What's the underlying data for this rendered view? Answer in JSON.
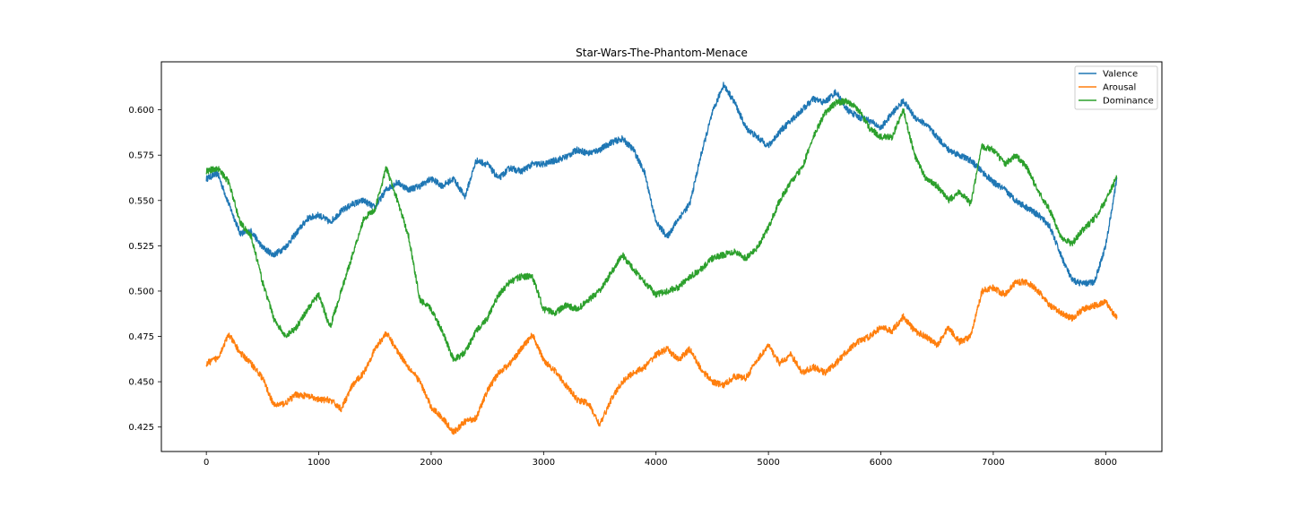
{
  "chart_data": {
    "type": "line",
    "title": "Star-Wars-The-Phantom-Menace",
    "xlabel": "",
    "ylabel": "",
    "xlim": [
      -400,
      8500
    ],
    "ylim": [
      0.4115,
      0.6265
    ],
    "xticks": [
      0,
      1000,
      2000,
      3000,
      4000,
      5000,
      6000,
      7000,
      8000
    ],
    "xtick_labels": [
      "0",
      "1000",
      "2000",
      "3000",
      "4000",
      "5000",
      "6000",
      "7000",
      "8000"
    ],
    "yticks": [
      0.425,
      0.45,
      0.475,
      0.5,
      0.525,
      0.55,
      0.575,
      0.6
    ],
    "ytick_labels": [
      "0.425",
      "0.450",
      "0.475",
      "0.500",
      "0.525",
      "0.550",
      "0.575",
      "0.600"
    ],
    "grid": false,
    "legend_position": "top-right",
    "series": [
      {
        "name": "Valence",
        "color": "#1f77b4",
        "x": [
          0,
          100,
          200,
          300,
          400,
          500,
          600,
          700,
          800,
          900,
          1000,
          1100,
          1200,
          1300,
          1400,
          1500,
          1600,
          1700,
          1800,
          1900,
          2000,
          2100,
          2200,
          2300,
          2400,
          2500,
          2600,
          2700,
          2800,
          2900,
          3000,
          3100,
          3200,
          3300,
          3400,
          3500,
          3600,
          3700,
          3800,
          3900,
          4000,
          4100,
          4200,
          4300,
          4400,
          4500,
          4600,
          4700,
          4800,
          4900,
          5000,
          5100,
          5200,
          5300,
          5400,
          5500,
          5600,
          5700,
          5800,
          5900,
          6000,
          6100,
          6200,
          6300,
          6400,
          6500,
          6600,
          6700,
          6800,
          6900,
          7000,
          7100,
          7200,
          7300,
          7400,
          7500,
          7600,
          7700,
          7800,
          7900,
          8000,
          8100
        ],
        "values": [
          0.562,
          0.565,
          0.548,
          0.532,
          0.533,
          0.524,
          0.52,
          0.524,
          0.532,
          0.54,
          0.542,
          0.538,
          0.544,
          0.548,
          0.55,
          0.546,
          0.556,
          0.56,
          0.556,
          0.558,
          0.562,
          0.558,
          0.562,
          0.552,
          0.572,
          0.57,
          0.562,
          0.568,
          0.566,
          0.57,
          0.57,
          0.572,
          0.574,
          0.578,
          0.576,
          0.578,
          0.582,
          0.584,
          0.578,
          0.565,
          0.538,
          0.53,
          0.54,
          0.548,
          0.575,
          0.598,
          0.614,
          0.604,
          0.59,
          0.585,
          0.58,
          0.588,
          0.594,
          0.6,
          0.606,
          0.604,
          0.61,
          0.6,
          0.596,
          0.594,
          0.59,
          0.598,
          0.605,
          0.596,
          0.592,
          0.585,
          0.578,
          0.575,
          0.572,
          0.566,
          0.56,
          0.556,
          0.55,
          0.546,
          0.542,
          0.536,
          0.52,
          0.506,
          0.504,
          0.505,
          0.525,
          0.562
        ]
      },
      {
        "name": "Arousal",
        "color": "#ff7f0e",
        "x": [
          0,
          100,
          200,
          300,
          400,
          500,
          600,
          700,
          800,
          900,
          1000,
          1100,
          1200,
          1300,
          1400,
          1500,
          1600,
          1700,
          1800,
          1900,
          2000,
          2100,
          2200,
          2300,
          2400,
          2500,
          2600,
          2700,
          2800,
          2900,
          3000,
          3100,
          3200,
          3300,
          3400,
          3500,
          3600,
          3700,
          3800,
          3900,
          4000,
          4100,
          4200,
          4300,
          4400,
          4500,
          4600,
          4700,
          4800,
          4900,
          5000,
          5100,
          5200,
          5300,
          5400,
          5500,
          5600,
          5700,
          5800,
          5900,
          6000,
          6100,
          6200,
          6300,
          6400,
          6500,
          6600,
          6700,
          6800,
          6900,
          7000,
          7100,
          7200,
          7300,
          7400,
          7500,
          7600,
          7700,
          7800,
          7900,
          8000,
          8100
        ],
        "values": [
          0.46,
          0.463,
          0.476,
          0.466,
          0.46,
          0.452,
          0.437,
          0.438,
          0.443,
          0.442,
          0.44,
          0.44,
          0.435,
          0.448,
          0.455,
          0.468,
          0.477,
          0.467,
          0.458,
          0.45,
          0.436,
          0.43,
          0.422,
          0.428,
          0.43,
          0.445,
          0.455,
          0.46,
          0.468,
          0.476,
          0.462,
          0.456,
          0.448,
          0.44,
          0.438,
          0.426,
          0.44,
          0.45,
          0.455,
          0.458,
          0.465,
          0.468,
          0.462,
          0.468,
          0.457,
          0.45,
          0.448,
          0.453,
          0.452,
          0.462,
          0.47,
          0.46,
          0.465,
          0.455,
          0.458,
          0.455,
          0.46,
          0.467,
          0.472,
          0.475,
          0.48,
          0.478,
          0.486,
          0.478,
          0.475,
          0.47,
          0.48,
          0.472,
          0.475,
          0.5,
          0.502,
          0.498,
          0.505,
          0.505,
          0.5,
          0.492,
          0.488,
          0.485,
          0.49,
          0.492,
          0.494,
          0.485
        ]
      },
      {
        "name": "Dominance",
        "color": "#2ca02c",
        "x": [
          0,
          100,
          200,
          300,
          400,
          500,
          600,
          700,
          800,
          900,
          1000,
          1100,
          1200,
          1300,
          1400,
          1500,
          1600,
          1700,
          1800,
          1900,
          2000,
          2100,
          2200,
          2300,
          2400,
          2500,
          2600,
          2700,
          2800,
          2900,
          3000,
          3100,
          3200,
          3300,
          3400,
          3500,
          3600,
          3700,
          3800,
          3900,
          4000,
          4100,
          4200,
          4300,
          4400,
          4500,
          4600,
          4700,
          4800,
          4900,
          5000,
          5100,
          5200,
          5300,
          5400,
          5500,
          5600,
          5700,
          5800,
          5900,
          6000,
          6100,
          6200,
          6300,
          6400,
          6500,
          6600,
          6700,
          6800,
          6900,
          7000,
          7100,
          7200,
          7300,
          7400,
          7500,
          7600,
          7700,
          7800,
          7900,
          8000,
          8100
        ],
        "values": [
          0.566,
          0.568,
          0.56,
          0.538,
          0.53,
          0.505,
          0.485,
          0.475,
          0.48,
          0.49,
          0.498,
          0.48,
          0.5,
          0.52,
          0.54,
          0.545,
          0.568,
          0.55,
          0.53,
          0.495,
          0.49,
          0.478,
          0.462,
          0.466,
          0.478,
          0.485,
          0.498,
          0.505,
          0.508,
          0.508,
          0.49,
          0.488,
          0.492,
          0.49,
          0.495,
          0.5,
          0.51,
          0.52,
          0.512,
          0.505,
          0.498,
          0.5,
          0.502,
          0.508,
          0.512,
          0.518,
          0.52,
          0.522,
          0.518,
          0.524,
          0.535,
          0.55,
          0.56,
          0.568,
          0.585,
          0.598,
          0.604,
          0.605,
          0.6,
          0.59,
          0.585,
          0.585,
          0.6,
          0.575,
          0.562,
          0.558,
          0.55,
          0.555,
          0.548,
          0.58,
          0.578,
          0.57,
          0.575,
          0.568,
          0.555,
          0.545,
          0.53,
          0.526,
          0.534,
          0.54,
          0.55,
          0.563
        ]
      }
    ]
  }
}
